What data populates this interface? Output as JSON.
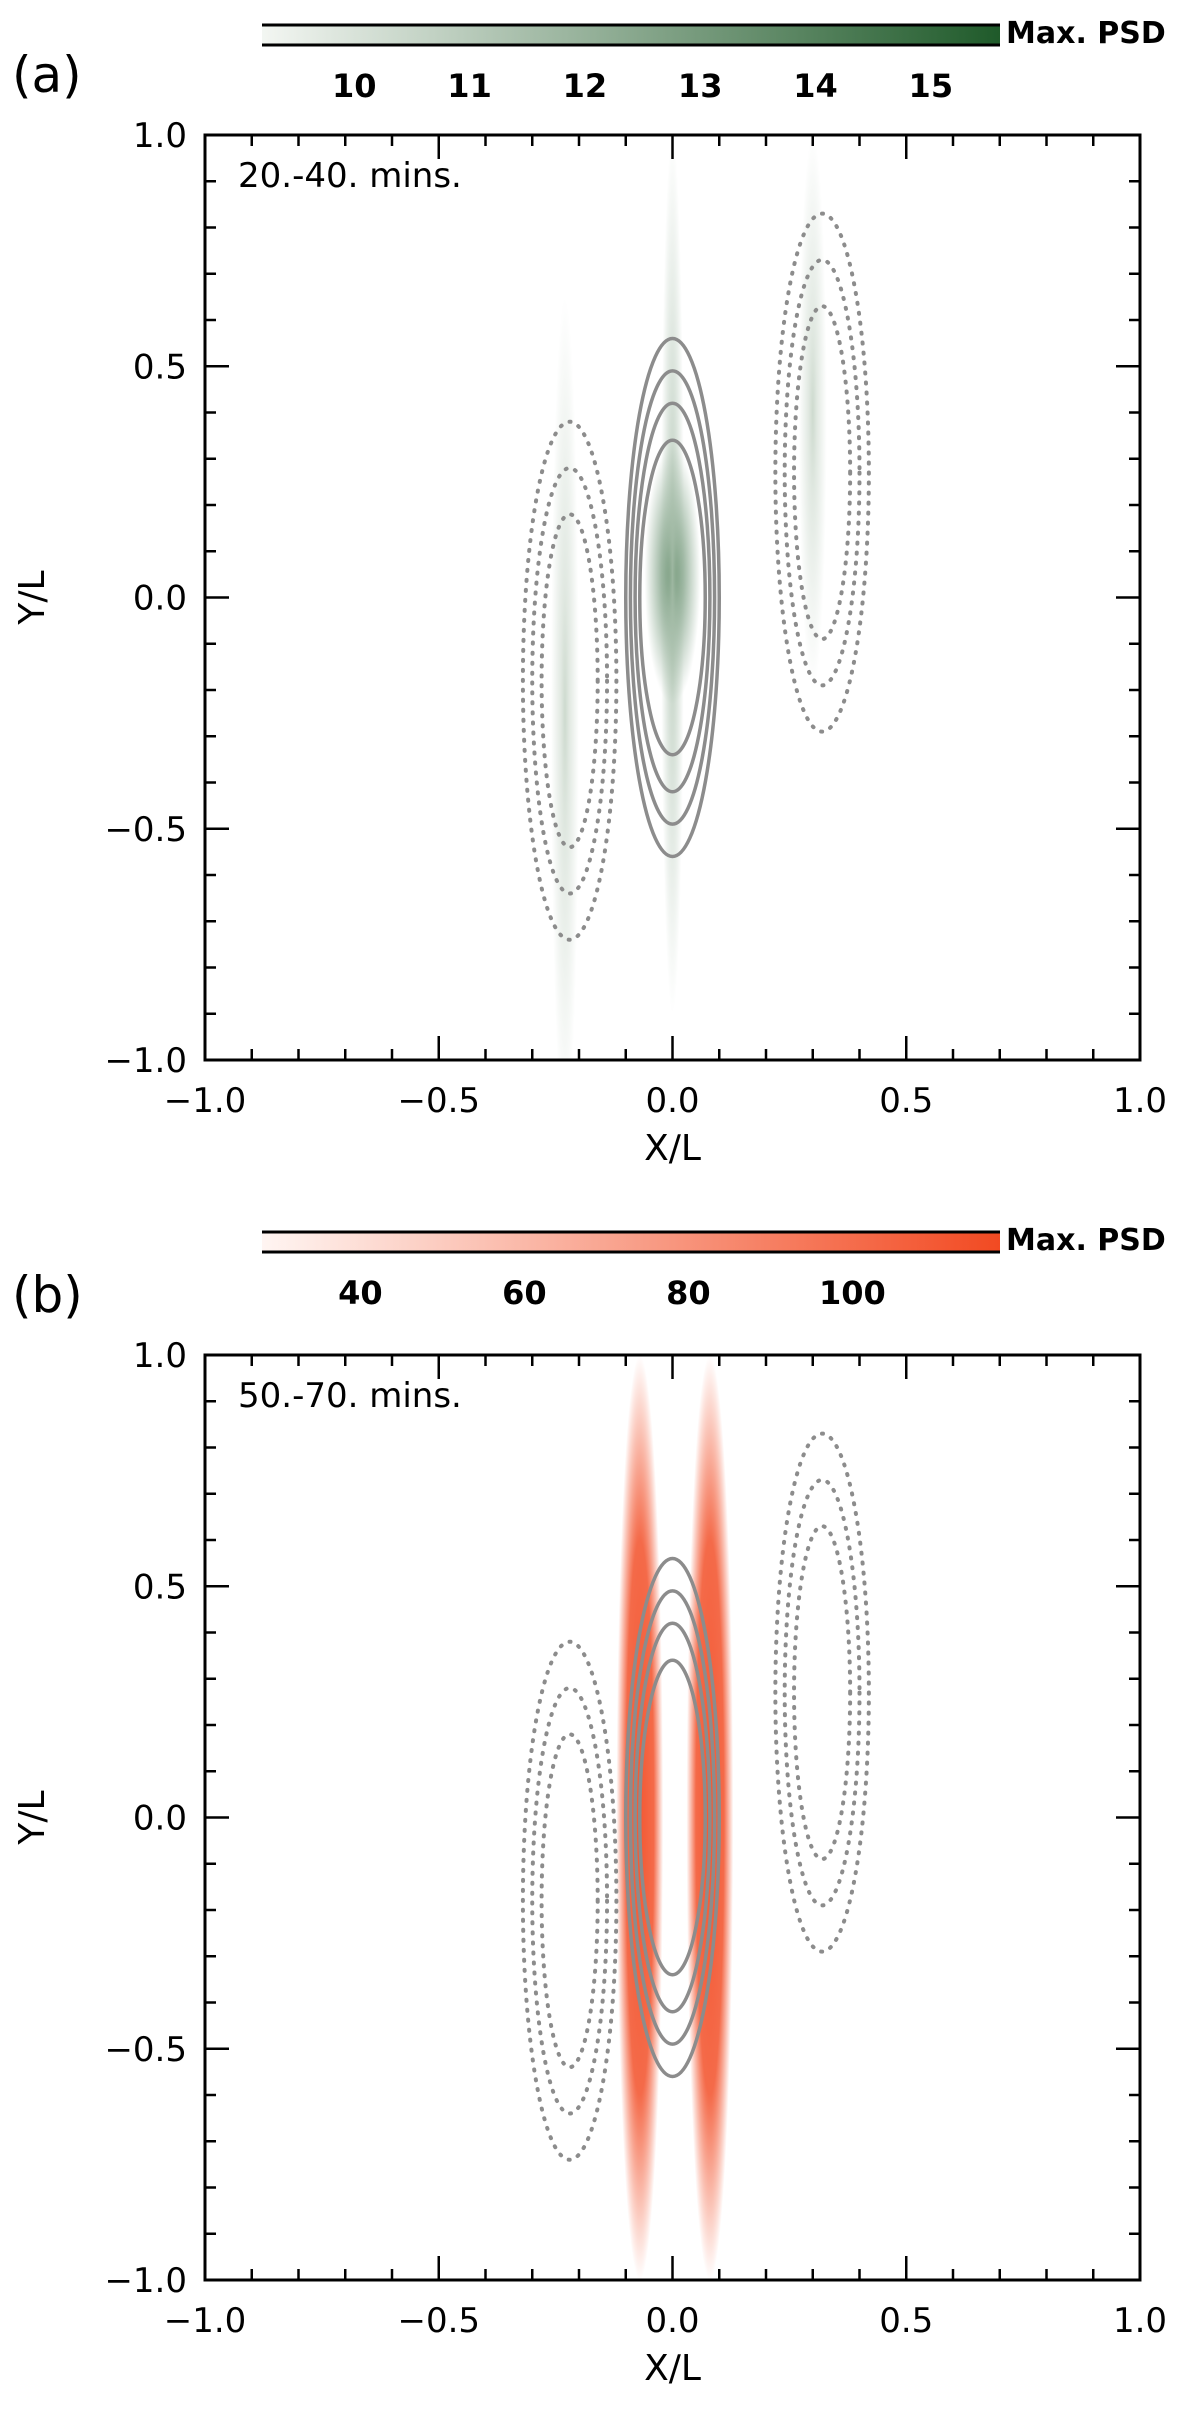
{
  "chart_data": [
    {
      "type": "heatmap",
      "panel_label": "(a)",
      "time_window": "20.-40. mins.",
      "xlabel": "X/L",
      "ylabel": "Y/L",
      "xlim": [
        -1.0,
        1.0
      ],
      "ylim": [
        -1.0,
        1.0
      ],
      "xticks": [
        "-1.0",
        "-0.5",
        "0.0",
        "0.5",
        "1.0"
      ],
      "yticks": [
        "-1.0",
        "-0.5",
        "0.0",
        "0.5",
        "1.0"
      ],
      "colorbar": {
        "title": "Max. PSD",
        "range": [
          9.2,
          15.6
        ],
        "ticks": [
          "10",
          "11",
          "12",
          "13",
          "14",
          "15"
        ],
        "color_low": "#f3f6f2",
        "color_high": "#1f5a2a"
      },
      "features": [
        {
          "kind": "blob",
          "cx": 0.0,
          "cy": 0.05,
          "rx": 0.06,
          "ry": 0.28,
          "value": 15.0
        },
        {
          "kind": "blob",
          "cx": 0.0,
          "cy": 0.05,
          "rx": 0.025,
          "ry": 0.95,
          "value": 11.5
        },
        {
          "kind": "blob",
          "cx": -0.23,
          "cy": -0.25,
          "rx": 0.03,
          "ry": 0.9,
          "value": 10.5
        },
        {
          "kind": "blob",
          "cx": 0.3,
          "cy": 0.4,
          "rx": 0.03,
          "ry": 0.6,
          "value": 10.5
        }
      ],
      "contours": {
        "solid": {
          "cx": 0.0,
          "cy": 0.0,
          "rx": [
            0.1,
            0.09,
            0.08,
            0.07
          ],
          "ry": [
            0.56,
            0.49,
            0.42,
            0.34
          ]
        },
        "dotted_left": {
          "cx": -0.22,
          "cy": -0.18,
          "rx": [
            0.1,
            0.08,
            0.06
          ],
          "ry": [
            0.56,
            0.46,
            0.36
          ]
        },
        "dotted_right": {
          "cx": 0.32,
          "cy": 0.27,
          "rx": [
            0.1,
            0.08,
            0.06
          ],
          "ry": [
            0.56,
            0.46,
            0.36
          ]
        }
      }
    },
    {
      "type": "heatmap",
      "panel_label": "(b)",
      "time_window": "50.-70. mins.",
      "xlabel": "X/L",
      "ylabel": "Y/L",
      "xlim": [
        -1.0,
        1.0
      ],
      "ylim": [
        -1.0,
        1.0
      ],
      "xticks": [
        "-1.0",
        "-0.5",
        "0.0",
        "0.5",
        "1.0"
      ],
      "yticks": [
        "-1.0",
        "-0.5",
        "0.0",
        "0.5",
        "1.0"
      ],
      "colorbar": {
        "title": "Max. PSD",
        "range": [
          28,
          118
        ],
        "ticks": [
          "40",
          "60",
          "80",
          "100"
        ],
        "color_low": "#fff5f2",
        "color_high": "#f24a22"
      },
      "features": [
        {
          "kind": "band",
          "cx": -0.07,
          "cy": 0.0,
          "rx": 0.05,
          "ry": 1.0,
          "value": 115
        },
        {
          "kind": "band",
          "cx": 0.08,
          "cy": 0.0,
          "rx": 0.05,
          "ry": 1.0,
          "value": 115
        }
      ],
      "contours": {
        "solid": {
          "cx": 0.0,
          "cy": 0.0,
          "rx": [
            0.1,
            0.09,
            0.08,
            0.07
          ],
          "ry": [
            0.56,
            0.49,
            0.42,
            0.34
          ]
        },
        "dotted_left": {
          "cx": -0.22,
          "cy": -0.18,
          "rx": [
            0.1,
            0.08,
            0.06
          ],
          "ry": [
            0.56,
            0.46,
            0.36
          ]
        },
        "dotted_right": {
          "cx": 0.32,
          "cy": 0.27,
          "rx": [
            0.1,
            0.08,
            0.06
          ],
          "ry": [
            0.56,
            0.46,
            0.36
          ]
        }
      }
    }
  ]
}
